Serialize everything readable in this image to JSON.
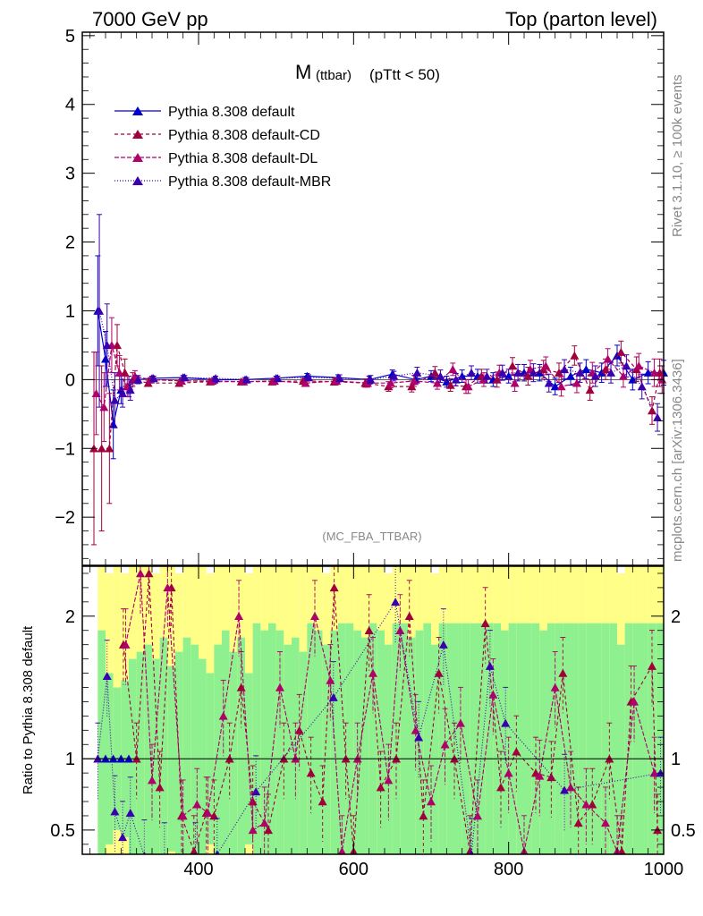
{
  "header": {
    "energy_label": "7000 GeV pp",
    "process_label": "Top (parton level)"
  },
  "side_labels": {
    "rivet": "Rivet 3.1.10, ≥ 100k events",
    "mcplots": "mcplots.cern.ch [arXiv:1306.3436]"
  },
  "chart_data": {
    "type": "line",
    "title_main": "M",
    "title_sub": "(ttbar)",
    "title_cut": "(pTtt < 50)",
    "analysis_tag": "(MC_FBA_TTBAR)",
    "xlabel": "",
    "ylabel": "",
    "xlim": [
      250,
      1000
    ],
    "ylim": [
      -2.7,
      5.05
    ],
    "x_ticks": [
      400,
      600,
      800,
      1000
    ],
    "y_ticks": [
      -2,
      -1,
      0,
      1,
      2,
      3,
      4,
      5
    ],
    "y_tick_labels": [
      "−2",
      "−1",
      "0",
      "1",
      "2",
      "3",
      "4",
      "5"
    ],
    "legend_position": "top-left",
    "series": [
      {
        "name": "Pythia 8.308 default",
        "color": "#0000cc",
        "dash": "solid",
        "x": [
          270,
          280,
          290,
          300,
          310,
          320,
          340,
          380,
          420,
          460,
          500,
          540,
          580,
          620,
          650,
          680,
          700,
          720,
          740,
          760,
          780,
          800,
          820,
          840,
          860,
          880,
          900,
          920,
          940,
          960,
          980,
          1000
        ],
        "y": [
          1.0,
          0.3,
          -0.65,
          -0.15,
          -0.1,
          0.0,
          0.02,
          0.03,
          0.0,
          0.0,
          0.02,
          0.05,
          0.03,
          0.0,
          0.08,
          0.0,
          0.05,
          -0.03,
          0.05,
          0.05,
          0.0,
          0.05,
          0.1,
          0.1,
          -0.1,
          0.05,
          0.15,
          0.1,
          0.35,
          0.0,
          0.1,
          0.1
        ],
        "err": [
          0.8,
          0.4,
          0.5,
          0.2,
          0.15,
          0.05,
          0.03,
          0.03,
          0.03,
          0.03,
          0.03,
          0.04,
          0.04,
          0.05,
          0.06,
          0.07,
          0.08,
          0.08,
          0.09,
          0.1,
          0.1,
          0.1,
          0.12,
          0.12,
          0.12,
          0.13,
          0.14,
          0.14,
          0.15,
          0.15,
          0.16,
          0.18
        ]
      },
      {
        "name": "Pythia 8.308 default-CD",
        "color": "#a0003c",
        "dash": "4,3",
        "x": [
          265,
          275,
          285,
          295,
          305,
          315,
          335,
          375,
          415,
          455,
          495,
          535,
          575,
          615,
          645,
          675,
          705,
          725,
          745,
          765,
          785,
          805,
          825,
          845,
          865,
          885,
          905,
          925,
          945,
          965,
          985,
          995
        ],
        "y": [
          -1.0,
          -1.0,
          -1.0,
          0.5,
          0.1,
          0.0,
          -0.05,
          -0.05,
          -0.03,
          -0.03,
          -0.03,
          -0.02,
          -0.03,
          -0.05,
          -0.1,
          -0.1,
          0.1,
          -0.08,
          -0.1,
          0.05,
          0.0,
          0.2,
          0.05,
          0.15,
          0.1,
          0.35,
          -0.15,
          0.15,
          0.4,
          0.15,
          -0.45,
          0.1
        ],
        "err": [
          1.4,
          1.2,
          0.8,
          0.3,
          0.2,
          0.1,
          0.03,
          0.03,
          0.03,
          0.03,
          0.03,
          0.04,
          0.05,
          0.06,
          0.07,
          0.08,
          0.09,
          0.09,
          0.1,
          0.1,
          0.11,
          0.12,
          0.13,
          0.13,
          0.14,
          0.14,
          0.15,
          0.15,
          0.16,
          0.18,
          0.2,
          0.2
        ]
      },
      {
        "name": "Pythia 8.308 default-DL",
        "color": "#b0006a",
        "dash": "5,2",
        "x": [
          268,
          278,
          288,
          298,
          308,
          318,
          338,
          378,
          418,
          458,
          498,
          538,
          578,
          618,
          648,
          678,
          708,
          728,
          748,
          768,
          788,
          808,
          828,
          848,
          868,
          888,
          908,
          928,
          948,
          968,
          988,
          998
        ],
        "y": [
          -0.2,
          -0.4,
          0.5,
          0.1,
          -0.1,
          0.05,
          0.0,
          -0.02,
          -0.02,
          -0.03,
          -0.02,
          -0.05,
          -0.02,
          -0.05,
          -0.05,
          -0.02,
          -0.05,
          0.15,
          -0.1,
          0.0,
          0.1,
          -0.05,
          0.15,
          0.2,
          -0.1,
          -0.05,
          0.1,
          0.3,
          0.05,
          0.2,
          0.1,
          0.0
        ],
        "err": [
          0.6,
          0.5,
          0.4,
          0.25,
          0.15,
          0.08,
          0.03,
          0.03,
          0.03,
          0.03,
          0.03,
          0.04,
          0.05,
          0.06,
          0.07,
          0.08,
          0.09,
          0.09,
          0.1,
          0.1,
          0.11,
          0.12,
          0.13,
          0.13,
          0.14,
          0.14,
          0.15,
          0.15,
          0.16,
          0.18,
          0.2,
          0.2
        ]
      },
      {
        "name": "Pythia 8.308 default-MBR",
        "color": "#3a00b0",
        "dash": "1,2",
        "x": [
          272,
          282,
          292,
          302,
          312,
          322,
          342,
          382,
          422,
          462,
          502,
          542,
          582,
          622,
          652,
          682,
          712,
          732,
          752,
          772,
          792,
          812,
          832,
          852,
          872,
          892,
          912,
          932,
          952,
          972,
          992
        ],
        "y": [
          1.0,
          0.5,
          -0.3,
          -0.2,
          -0.15,
          0.0,
          0.02,
          0.03,
          0.02,
          0.0,
          0.02,
          0.03,
          0.02,
          0.0,
          0.05,
          0.1,
          0.05,
          0.0,
          0.1,
          0.05,
          0.1,
          0.1,
          0.1,
          -0.05,
          0.15,
          0.1,
          0.05,
          0.1,
          0.2,
          -0.1,
          -0.55
        ],
        "err": [
          1.4,
          0.6,
          0.4,
          0.2,
          0.15,
          0.06,
          0.03,
          0.03,
          0.03,
          0.03,
          0.03,
          0.04,
          0.05,
          0.06,
          0.07,
          0.08,
          0.09,
          0.09,
          0.1,
          0.1,
          0.11,
          0.12,
          0.13,
          0.13,
          0.14,
          0.14,
          0.15,
          0.15,
          0.16,
          0.18,
          0.2
        ]
      }
    ],
    "ratio": {
      "ylabel": "Ratio to Pythia 8.308 default",
      "ylim": [
        0.33,
        2.35
      ],
      "y_ticks": [
        0.5,
        1,
        2
      ],
      "y_tick_labels": [
        "0.5",
        "1",
        "2"
      ],
      "reference_band": {
        "x_edges": [
          270,
          280,
          290,
          300,
          310,
          320,
          330,
          340,
          350,
          360,
          370,
          380,
          390,
          400,
          410,
          420,
          430,
          440,
          450,
          460,
          470,
          480,
          490,
          500,
          510,
          520,
          530,
          540,
          550,
          560,
          570,
          580,
          590,
          600,
          610,
          620,
          630,
          640,
          650,
          660,
          670,
          680,
          690,
          700,
          710,
          720,
          730,
          740,
          750,
          760,
          770,
          780,
          790,
          800,
          810,
          820,
          830,
          840,
          850,
          860,
          870,
          880,
          890,
          900,
          910,
          920,
          930,
          940,
          950,
          960,
          970,
          980,
          990,
          1000
        ],
        "inner": [
          0.9,
          0.6,
          0.5,
          0.55,
          0.7,
          0.75,
          0.8,
          0.7,
          0.85,
          0.65,
          0.75,
          0.85,
          0.8,
          0.7,
          0.6,
          0.8,
          0.9,
          0.75,
          0.85,
          0.6,
          0.95,
          0.9,
          0.95,
          0.9,
          0.8,
          0.85,
          0.75,
          0.95,
          0.9,
          0.8,
          0.9,
          0.95,
          0.95,
          0.9,
          0.85,
          0.95,
          0.9,
          0.8,
          0.95,
          0.95,
          0.85,
          0.9,
          0.95,
          0.8,
          0.95,
          0.95,
          0.95,
          0.95,
          0.95,
          0.95,
          0.95,
          0.95,
          0.9,
          0.95,
          0.95,
          0.95,
          0.95,
          0.9,
          0.95,
          0.95,
          0.95,
          0.95,
          0.95,
          0.95,
          0.95,
          0.95,
          0.95,
          0.8,
          0.95,
          0.95,
          0.95,
          0.95,
          0.95
        ],
        "outer": [
          1.4,
          1.3,
          1.4,
          1.3,
          1.4,
          1.4,
          1.4,
          1.3,
          1.4,
          1.4,
          1.3,
          1.4,
          1.35,
          1.35,
          1.3,
          1.35,
          1.4,
          1.4,
          1.35,
          1.3,
          1.4,
          1.4,
          1.35,
          1.4,
          1.35,
          1.35,
          1.35,
          1.4,
          1.4,
          1.3,
          1.35,
          1.4,
          1.4,
          1.35,
          1.35,
          1.4,
          1.4,
          1.3,
          1.35,
          1.4,
          1.35,
          1.35,
          1.35,
          1.3,
          1.4,
          1.4,
          1.4,
          1.4,
          1.4,
          1.4,
          1.4,
          1.4,
          1.35,
          1.4,
          1.4,
          1.4,
          1.4,
          1.35,
          1.4,
          1.4,
          1.4,
          1.4,
          1.4,
          1.4,
          1.4,
          1.4,
          1.4,
          1.3,
          1.4,
          1.4,
          1.4,
          1.4,
          1.4
        ]
      },
      "series": [
        {
          "name": "Pythia 8.308 default",
          "color": "#0000cc",
          "dash": "solid",
          "x": [
            270,
            280,
            290,
            300,
            310
          ],
          "y": [
            1.0,
            1.0,
            1.0,
            1.0,
            1.0
          ]
        },
        {
          "name": "Pythia 8.308 default-CD",
          "color": "#a0003c",
          "dash": "4,3",
          "x": [
            303,
            320,
            336,
            350,
            365,
            378,
            394,
            410,
            420,
            440,
            455,
            470,
            490,
            510,
            530,
            545,
            560,
            575,
            590,
            600,
            620,
            635,
            655,
            672,
            690,
            710,
            730,
            750,
            770,
            790,
            810,
            835,
            855,
            870,
            890,
            908,
            930,
            946,
            958,
            985,
            992
          ],
          "y": [
            1.8,
            1.0,
            2.3,
            0.8,
            2.2,
            0.6,
            0.35,
            0.62,
            0.6,
            1.0,
            1.5,
            0.7,
            0.5,
            1.0,
            1.2,
            0.9,
            0.7,
            2.2,
            1.0,
            0.35,
            1.9,
            0.8,
            1.0,
            2.0,
            0.6,
            1.6,
            1.0,
            0.35,
            1.95,
            0.8,
            1.05,
            0.9,
            0.87,
            1.6,
            0.55,
            0.68,
            1.0,
            0.35,
            1.4,
            1.65,
            0.5
          ]
        },
        {
          "name": "Pythia 8.308 default-DL",
          "color": "#b0006a",
          "dash": "5,2",
          "x": [
            306,
            325,
            340,
            360,
            380,
            398,
            412,
            432,
            452,
            470,
            485,
            505,
            525,
            550,
            570,
            585,
            605,
            625,
            645,
            660,
            680,
            700,
            718,
            738,
            760,
            780,
            800,
            820,
            840,
            860,
            880,
            900,
            925,
            940,
            962,
            988
          ],
          "y": [
            1.8,
            2.3,
            0.85,
            2.2,
            0.6,
            0.68,
            0.62,
            1.3,
            2.0,
            0.5,
            0.55,
            1.5,
            1.0,
            2.0,
            1.55,
            0.35,
            1.0,
            1.6,
            0.85,
            1.9,
            1.2,
            0.7,
            1.1,
            1.25,
            0.6,
            1.45,
            0.9,
            0.35,
            0.88,
            1.5,
            0.8,
            0.68,
            0.55,
            0.35,
            1.4,
            0.9
          ]
        },
        {
          "name": "Pythia 8.308 default-MBR",
          "color": "#3a00b0",
          "dash": "1,2",
          "x": [
            270,
            282,
            292,
            302,
            312,
            330,
            356,
            396,
            424,
            474,
            574,
            654,
            684,
            716,
            752,
            776,
            796,
            872,
            996
          ],
          "y": [
            1.0,
            1.58,
            0.63,
            0.45,
            0.62,
            0.32,
            0.3,
            0.3,
            0.33,
            0.77,
            1.43,
            2.1,
            1.15,
            1.8,
            0.33,
            1.65,
            1.25,
            0.78,
            0.9
          ]
        }
      ]
    }
  }
}
